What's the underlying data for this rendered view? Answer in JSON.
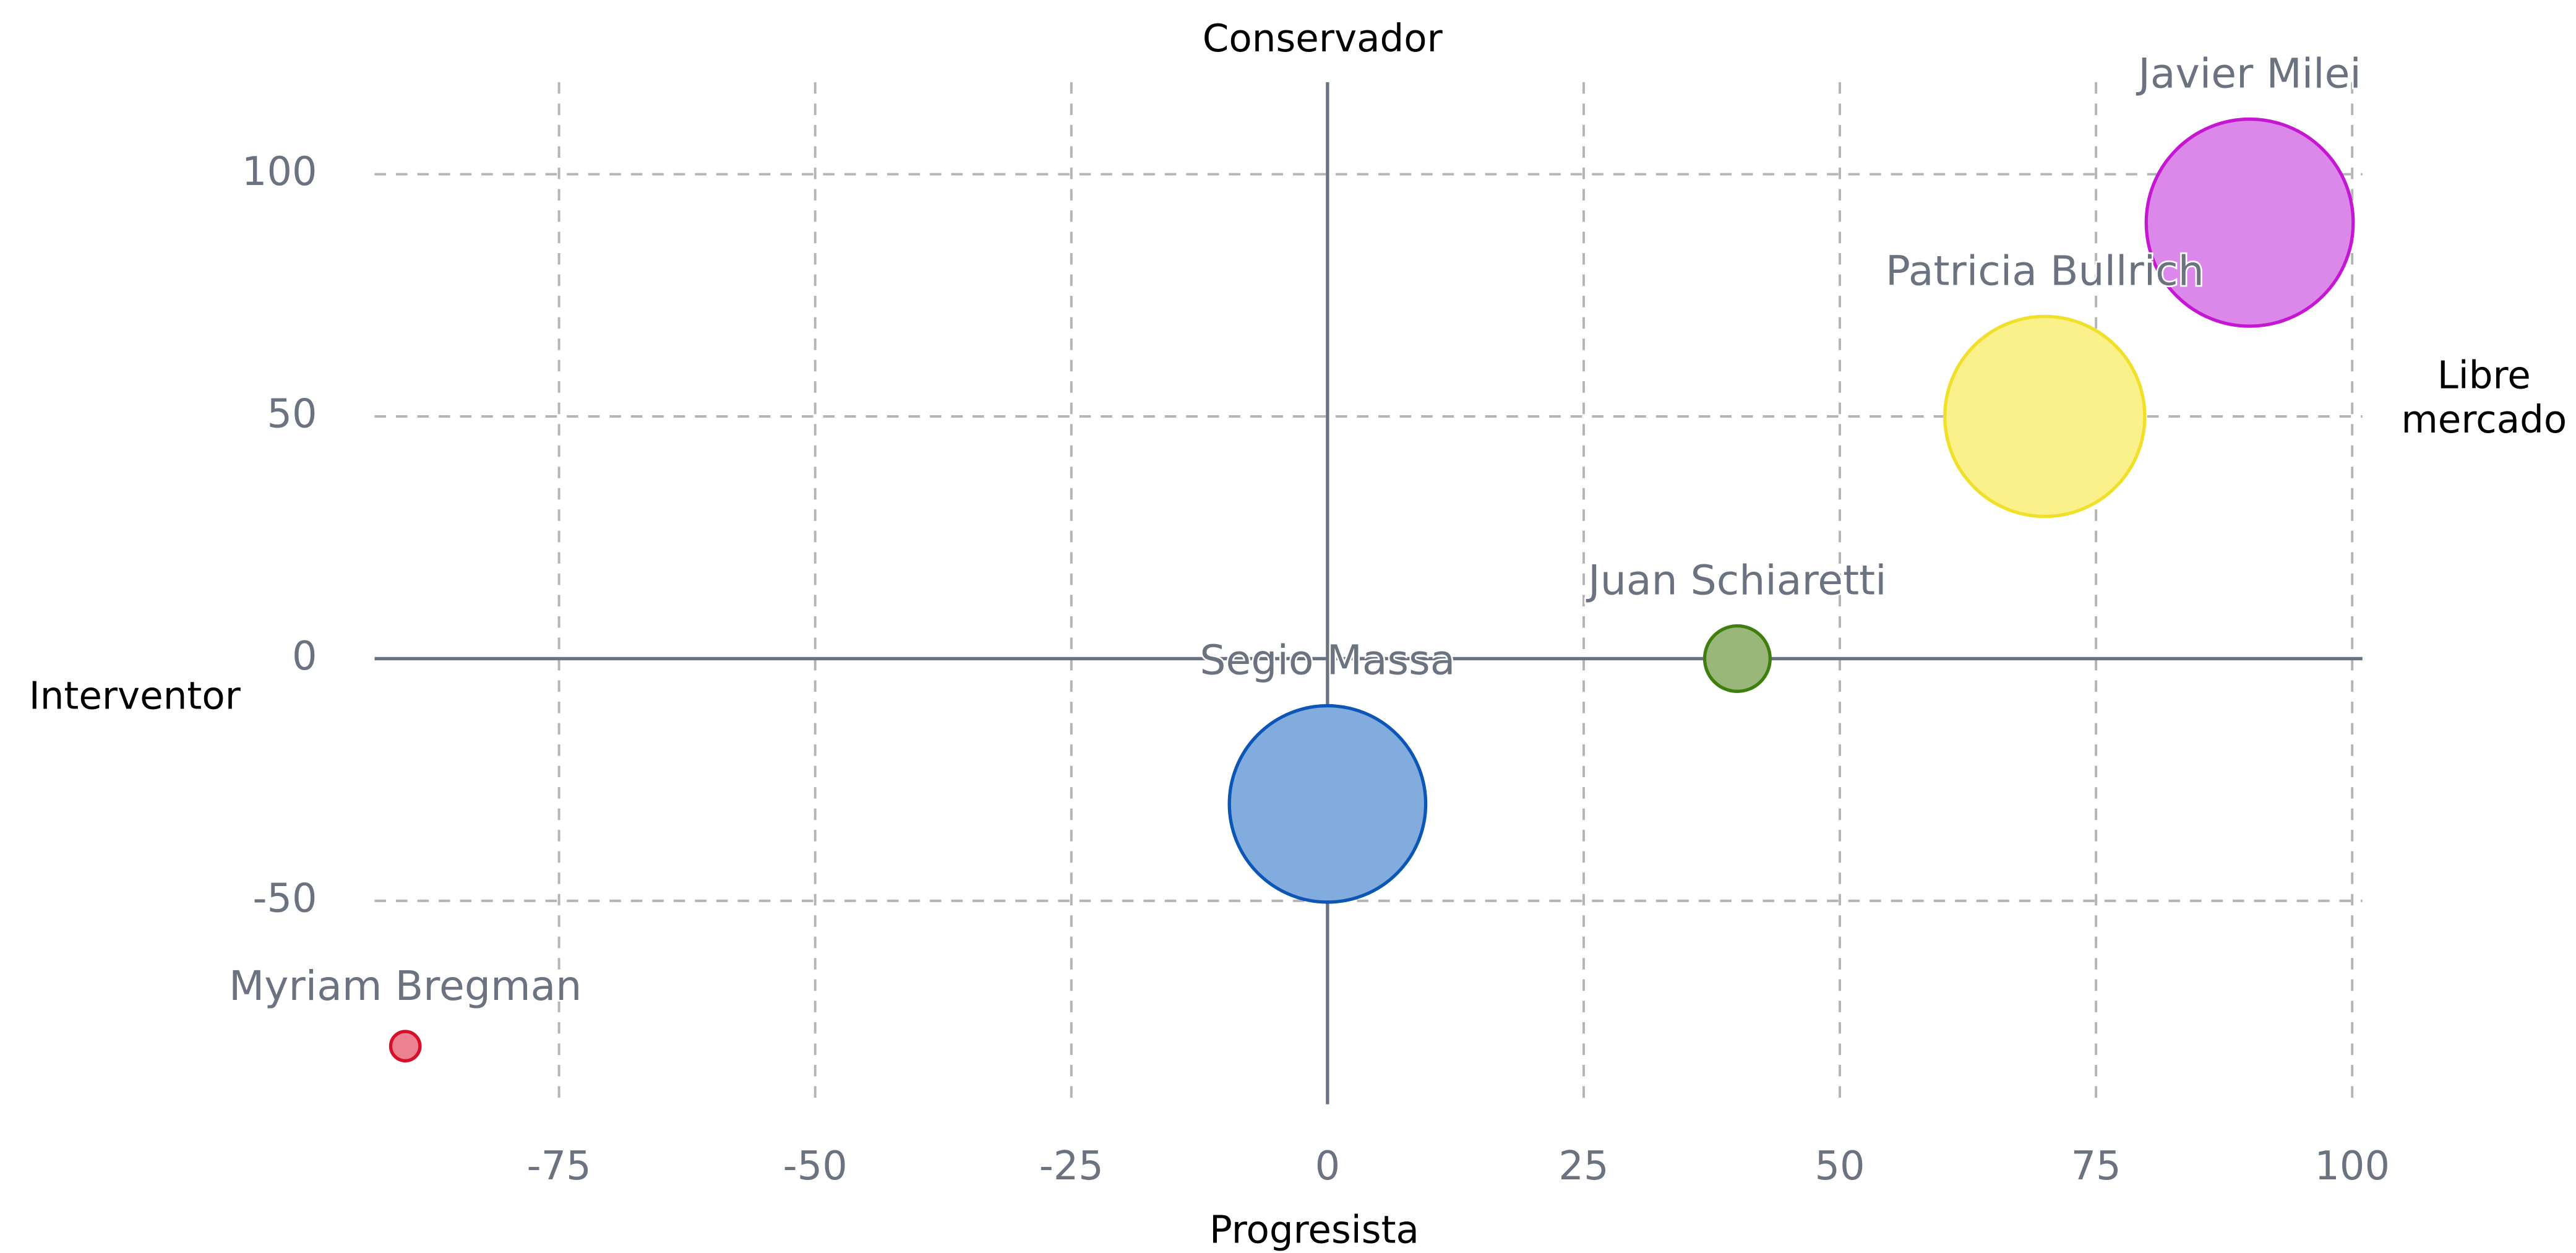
{
  "chart_data": {
    "type": "bubble",
    "top_label": "Conservador",
    "bottom_label": "Progresista",
    "left_label": "Interventor",
    "right_label": [
      "Libre",
      "mercado"
    ],
    "xlim": [
      -93,
      101
    ],
    "ylim": [
      -92,
      119
    ],
    "xticks": [
      -75,
      -50,
      -25,
      0,
      25,
      50,
      75,
      100
    ],
    "yticks": [
      -50,
      0,
      50,
      100
    ],
    "grid": true,
    "series": [
      {
        "name": "Javier Milei",
        "color": "#dc87ea",
        "edge": "#c517d1",
        "x": [
          90
        ],
        "values": [
          90
        ],
        "sizes": [
          30
        ]
      },
      {
        "name": "Patricia Bullrich",
        "color": "#fbf18a",
        "edge": "#f0e02a",
        "x": [
          70
        ],
        "values": [
          50
        ],
        "sizes": [
          28
        ]
      },
      {
        "name": "Juan Schiaretti",
        "color": "#9ab77a",
        "edge": "#3f7f10",
        "x": [
          40
        ],
        "values": [
          0
        ],
        "sizes": [
          3
        ]
      },
      {
        "name": "Segio Massa",
        "color": "#82abde",
        "edge": "#0c56b5",
        "x": [
          0
        ],
        "values": [
          -30
        ],
        "sizes": [
          27
        ]
      },
      {
        "name": "Myriam Bregman",
        "color": "#ec8190",
        "edge": "#d7102a",
        "x": [
          -90
        ],
        "values": [
          -80
        ],
        "sizes": [
          0.6
        ]
      }
    ]
  }
}
